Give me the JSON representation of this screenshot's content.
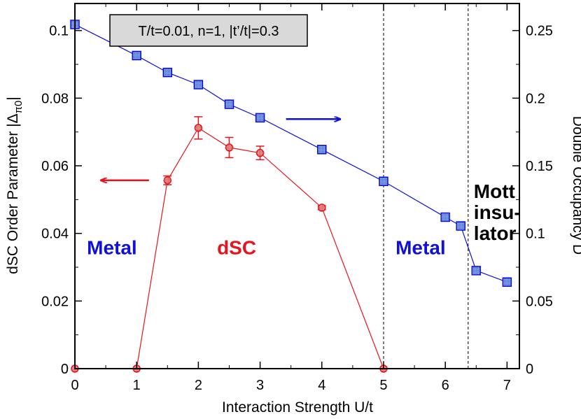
{
  "chart_data": {
    "type": "line",
    "annotation": "T/t=0.01, n=1, |t’/t|=0.3",
    "xlabel": "Interaction Strength U/t",
    "ylabel_left": "dSC Order Parameter |Δ",
    "ylabel_left_sub": "π0",
    "ylabel_left_end": "|",
    "ylabel_right": "Double Occupancy D",
    "xlim": [
      0,
      7.2
    ],
    "ylim_left": [
      0,
      0.108
    ],
    "ylim_right": [
      0,
      0.27
    ],
    "x_ticks": [
      0,
      1,
      2,
      3,
      4,
      5,
      6,
      7
    ],
    "x_tick_labels": [
      "0",
      "1",
      "2",
      "3",
      "4",
      "5",
      "6",
      "7"
    ],
    "y_left_ticks": [
      0,
      0.02,
      0.04,
      0.06,
      0.08,
      0.1
    ],
    "y_left_tick_labels": [
      "0",
      "0.02",
      "0.04",
      "0.06",
      "0.08",
      "0.1"
    ],
    "y_right_ticks": [
      0,
      0.05,
      0.1,
      0.15,
      0.2,
      0.25
    ],
    "y_right_tick_labels": [
      "0",
      "0.05",
      "0.1",
      "0.15",
      "0.2",
      "0.25"
    ],
    "vlines": [
      5.0,
      6.37
    ],
    "series": [
      {
        "name": "dSC order parameter",
        "axis": "left",
        "color": "#e8141d",
        "marker": "circle",
        "x": [
          0,
          1,
          1.5,
          2,
          2.5,
          3,
          4,
          5
        ],
        "y": [
          0,
          0,
          0.0557,
          0.0712,
          0.0654,
          0.0638,
          0.0476,
          0
        ],
        "err": [
          0,
          0,
          0.0013,
          0.0033,
          0.003,
          0.002,
          0.0006,
          0
        ]
      },
      {
        "name": "Double occupancy D",
        "axis": "right",
        "color": "#1010dd",
        "marker": "square",
        "x": [
          0,
          1,
          1.5,
          2,
          2.5,
          3,
          4,
          5,
          6,
          6.25,
          6.5,
          7
        ],
        "y": [
          0.2545,
          0.2315,
          0.219,
          0.21,
          0.1955,
          0.1855,
          0.162,
          0.1385,
          0.112,
          0.1055,
          0.0725,
          0.064
        ]
      }
    ],
    "arrows": [
      {
        "direction": "left",
        "axis": "left",
        "color": "#e8141d"
      },
      {
        "direction": "right",
        "axis": "right",
        "color": "#1010dd"
      }
    ],
    "regions": [
      {
        "id": "metal-left",
        "lines": [
          "Metal"
        ],
        "color": "#1010dd"
      },
      {
        "id": "dsc",
        "lines": [
          "dSC"
        ],
        "color": "#e8141d"
      },
      {
        "id": "metal-right",
        "lines": [
          "Metal"
        ],
        "color": "#1010dd"
      },
      {
        "id": "mott",
        "lines": [
          "Mott",
          "insu-",
          "lator"
        ],
        "color": "#000000"
      }
    ]
  }
}
